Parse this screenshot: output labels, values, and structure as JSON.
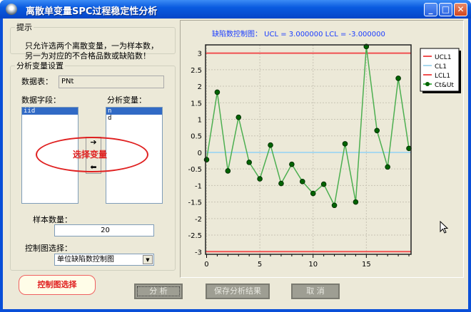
{
  "window": {
    "title": "离散单变量SPC过程稳定性分析",
    "min_label": "_",
    "max_label": "□",
    "close_label": "✕"
  },
  "hint": {
    "legend": "提示",
    "text_line1": "只允许选两个离散变量，一为样本数，",
    "text_line2": "另一为对应的不合格品数或缺陷数！"
  },
  "settings": {
    "legend": "分析变量设置",
    "table_label": "数据表：",
    "table_value": "PNt",
    "fields_label": "数据字段：",
    "fields": [
      "iid"
    ],
    "vars_label": "分析变量：",
    "vars": [
      "n",
      "d"
    ],
    "add_arrow": "➔",
    "remove_arrow": "⬅",
    "annotation_select": "选择变量",
    "sample_label": "样本数量：",
    "sample_value": "20",
    "chart_label": "控制图选择：",
    "chart_value": "单位缺陷数控制图"
  },
  "callout": "控制图选择",
  "buttons": {
    "analyze": "分 析",
    "save": "保存分析结果",
    "cancel": "取 消"
  },
  "colors": {
    "ucl": "#F05050",
    "cl": "#A8D8EE",
    "lcl": "#F05050",
    "series": "#4CAF50",
    "marker": "#006400",
    "title": "#1A3CFF"
  },
  "chart_data": {
    "type": "line",
    "title": "缺陷数控制图：  UCL = 3.000000    LCL = -3.000000",
    "xlim": [
      -0.1,
      19.2
    ],
    "ylim": [
      -3.08,
      3.25
    ],
    "xticks": [
      0,
      5,
      10,
      15
    ],
    "yticks": [
      3,
      2.5,
      2,
      1.5,
      1,
      0.5,
      0,
      -0.5,
      -1,
      -1.5,
      -2,
      -2.5,
      -3
    ],
    "grid": true,
    "legend_position": "right",
    "ucl": 3,
    "cl": 0,
    "lcl": -3,
    "legend": [
      "UCL1",
      "CL1",
      "LCL1",
      "Ct&Ut"
    ],
    "x": [
      0,
      1,
      2,
      3,
      4,
      5,
      6,
      7,
      8,
      9,
      10,
      11,
      12,
      13,
      14,
      15,
      16,
      17,
      18,
      19
    ],
    "y": [
      -0.22,
      1.82,
      -0.56,
      1.06,
      -0.3,
      -0.8,
      0.22,
      -0.94,
      -0.36,
      -0.88,
      -1.24,
      -0.96,
      -1.6,
      0.26,
      -1.5,
      3.2,
      0.66,
      -0.44,
      2.24,
      0.12
    ]
  }
}
